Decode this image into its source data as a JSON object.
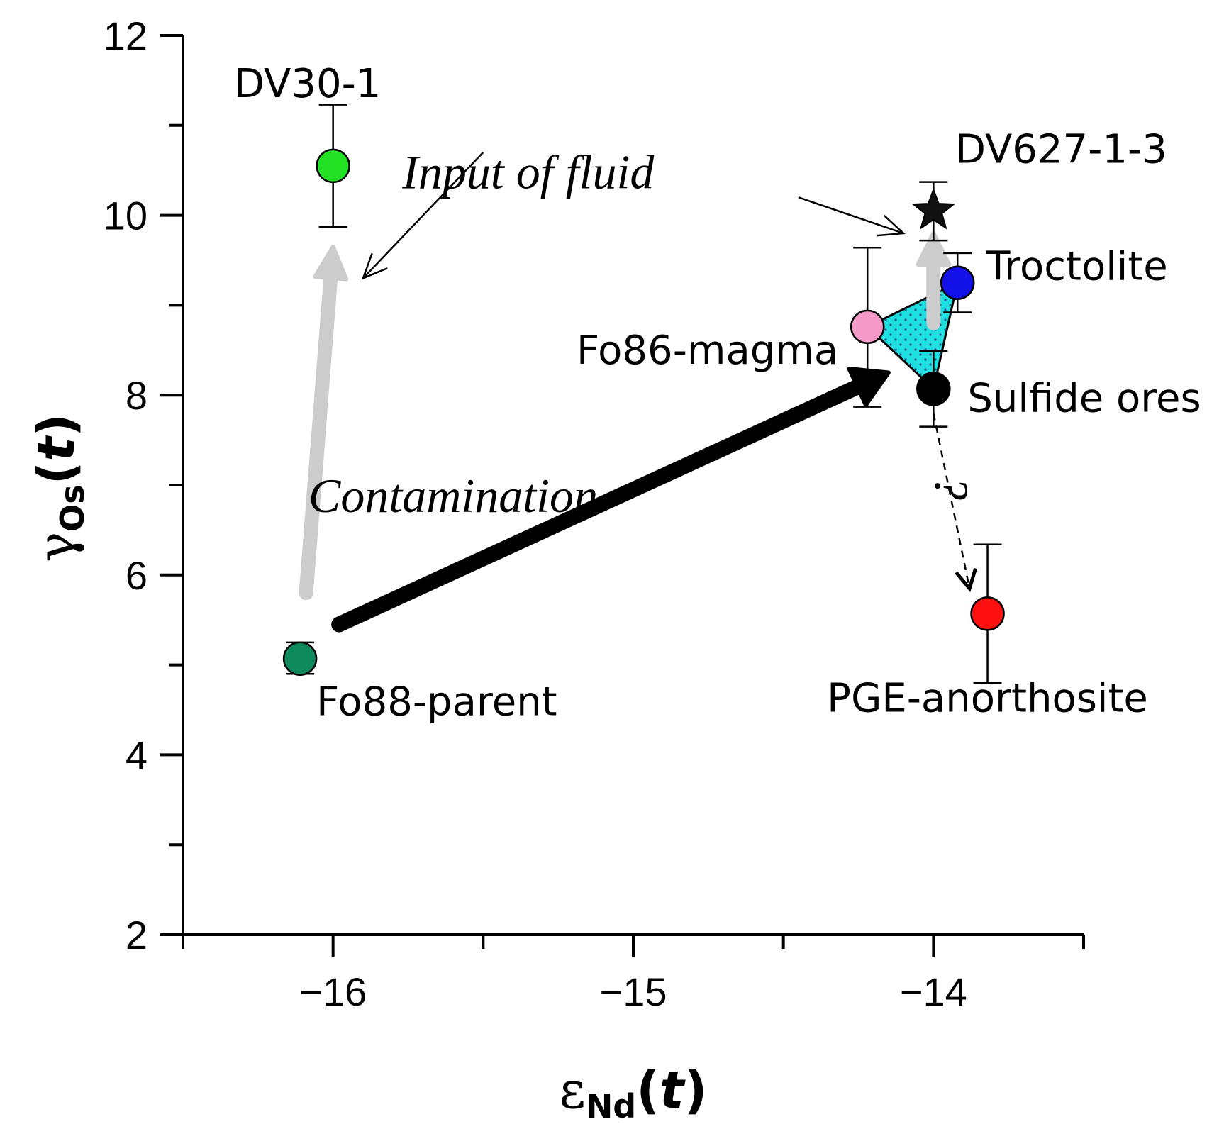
{
  "chart_data": {
    "type": "scatter",
    "x_axis": {
      "label_symbol": "ε",
      "label_subscript": "Nd",
      "label_open": "(",
      "label_var": "t",
      "label_close": ")",
      "range": [
        -16.5,
        -13.5
      ],
      "major_ticks": [
        -16,
        -15,
        -14
      ],
      "major_tick_labels": [
        "−16",
        "−15",
        "−14"
      ],
      "minor_ticks": [
        -16.5,
        -15.5,
        -14.5,
        -13.5
      ]
    },
    "y_axis": {
      "label_symbol": "γ",
      "label_subscript": "Os",
      "label_open": "(",
      "label_var": "t",
      "label_close": ")",
      "range": [
        2,
        12
      ],
      "major_ticks": [
        2,
        4,
        6,
        8,
        10,
        12
      ],
      "major_tick_labels": [
        "2",
        "4",
        "6",
        "8",
        "10",
        "12"
      ],
      "minor_ticks": [
        3,
        5,
        7,
        9,
        11
      ]
    },
    "points": [
      {
        "name": "DV30-1",
        "label": "DV30-1",
        "x": -16.0,
        "y": 10.55,
        "err_low": 9.87,
        "err_high": 11.23,
        "marker": "circle",
        "color": "#22e022"
      },
      {
        "name": "DV627-1-3",
        "label": "DV627-1-3",
        "x": -14.0,
        "y": 10.05,
        "err_low": 9.72,
        "err_high": 10.37,
        "marker": "star",
        "color": "#111111"
      },
      {
        "name": "Troctolite",
        "label": "Troctolite",
        "x": -13.92,
        "y": 9.25,
        "err_low": 8.92,
        "err_high": 9.58,
        "marker": "circle",
        "color": "#1111e8"
      },
      {
        "name": "Fo86-magma",
        "label": "Fo86-magma",
        "x": -14.22,
        "y": 8.76,
        "err_low": 7.87,
        "err_high": 9.64,
        "marker": "circle",
        "color": "#f59ac8"
      },
      {
        "name": "Sulfide ores",
        "label": "Sulfide ores",
        "x": -14.0,
        "y": 8.07,
        "err_low": 7.65,
        "err_high": 8.49,
        "marker": "circle",
        "color": "#000000"
      },
      {
        "name": "PGE-anorthosite",
        "label": "PGE-anorthosite",
        "x": -13.82,
        "y": 5.57,
        "err_low": 4.8,
        "err_high": 6.34,
        "marker": "circle",
        "color": "#ff1010"
      },
      {
        "name": "Fo88-parent",
        "label": "Fo88-parent",
        "x": -16.11,
        "y": 5.07,
        "err_low": 4.9,
        "err_high": 5.25,
        "marker": "circle",
        "color": "#0e8a5c"
      }
    ],
    "field_polygon": {
      "name": "cyan field",
      "vertices": [
        [
          -14.22,
          8.76
        ],
        [
          -13.92,
          9.25
        ],
        [
          -14.0,
          8.07
        ]
      ],
      "color": "#1ee0e0"
    },
    "annotations": [
      {
        "text": "Input of fluid",
        "x": -15.35,
        "y": 10.3
      },
      {
        "text": "Contamination",
        "x": -15.6,
        "y": 6.7
      },
      {
        "text": "¿",
        "x": -13.92,
        "y": 6.95
      }
    ],
    "arrows": [
      {
        "name": "contamination arrow",
        "from": [
          -15.98,
          5.45
        ],
        "to": [
          -14.15,
          8.25
        ],
        "color": "#000000",
        "style": "bold"
      },
      {
        "name": "fluid arrow left",
        "from": [
          -16.09,
          5.8
        ],
        "to": [
          -16.0,
          9.65
        ],
        "color": "#cccccc",
        "style": "bold"
      },
      {
        "name": "fluid arrow right",
        "from": [
          -14.0,
          8.8
        ],
        "to": [
          -14.0,
          9.8
        ],
        "color": "#cccccc",
        "style": "bold"
      },
      {
        "name": "fluid pointer left",
        "from": [
          -15.5,
          10.7
        ],
        "to": [
          -15.9,
          9.3
        ],
        "color": "#000000",
        "style": "thin"
      },
      {
        "name": "fluid pointer right",
        "from": [
          -14.45,
          10.2
        ],
        "to": [
          -14.1,
          9.8
        ],
        "color": "#000000",
        "style": "thin"
      },
      {
        "name": "dashed arrow",
        "from": [
          -14.0,
          7.8
        ],
        "to": [
          -13.88,
          5.85
        ],
        "color": "#000000",
        "style": "dashed"
      }
    ]
  }
}
